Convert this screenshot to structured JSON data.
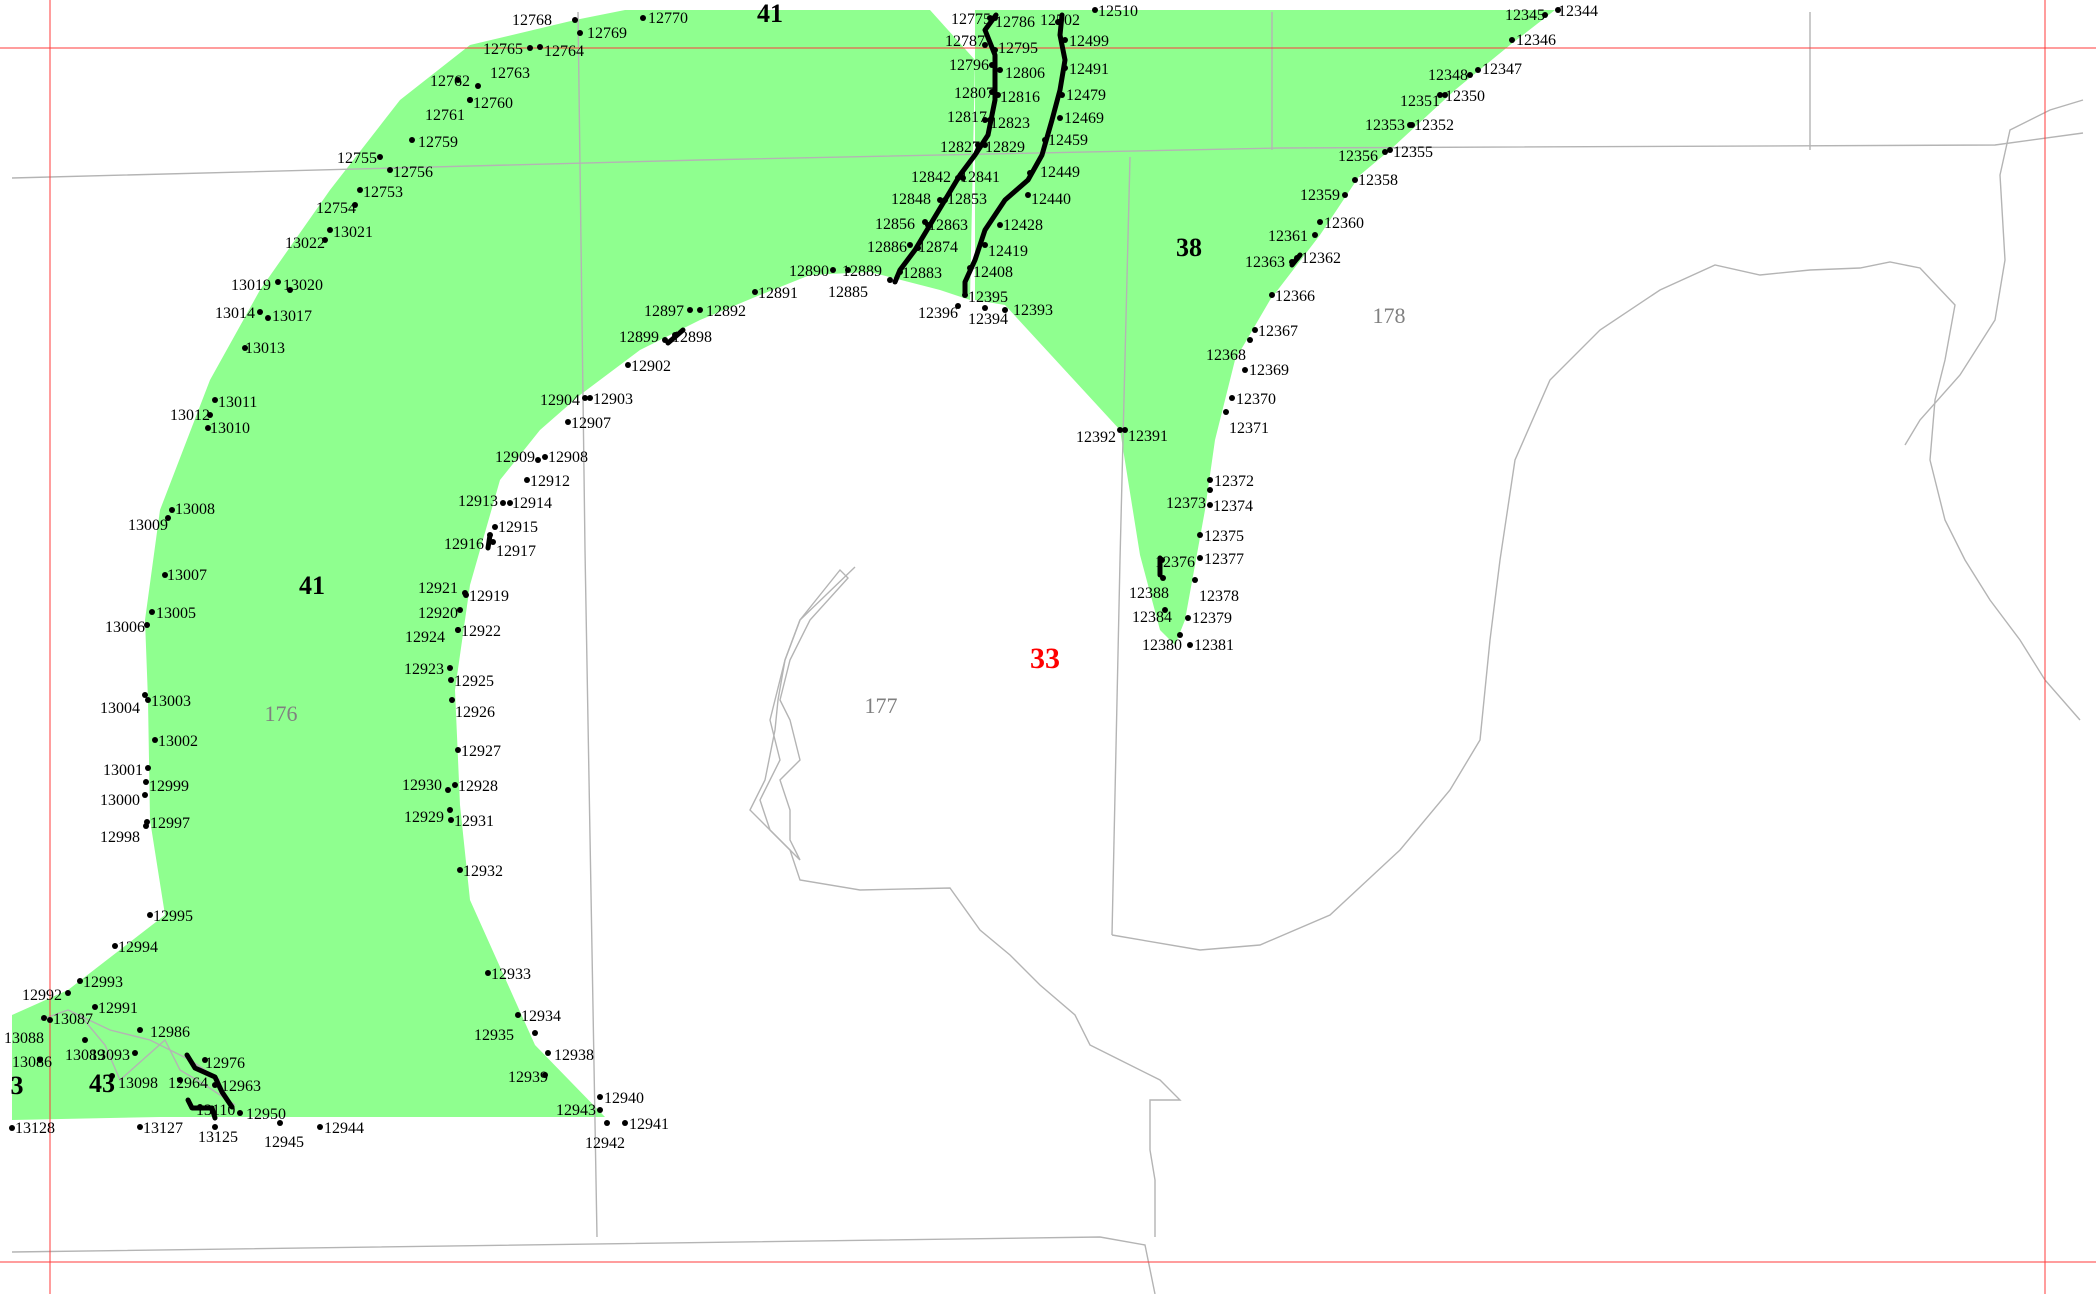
{
  "colors": {
    "zone_fill": "#8fff8f",
    "grid": "#ff3b3b",
    "parcel_boundary": "#b4b4b4",
    "parcel_label": "#808080",
    "center_label": "#ff0000",
    "point": "#000000"
  },
  "labels": {
    "zone_41_top": "41",
    "zone_41": "41",
    "zone_38": "38",
    "zone_43": "43",
    "zone_3": "3",
    "center": "33",
    "parcel_176": "176",
    "parcel_177": "177",
    "parcel_178": "178"
  },
  "points": [
    "12768",
    "12770",
    "12769",
    "12765",
    "12764",
    "12762",
    "12763",
    "12761",
    "12760",
    "12759",
    "12755",
    "12756",
    "12753",
    "12754",
    "13021",
    "13022",
    "13019",
    "13020",
    "13014",
    "13017",
    "13013",
    "13012",
    "13011",
    "13010",
    "13008",
    "13009",
    "13007",
    "13005",
    "13006",
    "13004",
    "13003",
    "13002",
    "13001",
    "12999",
    "13000",
    "12997",
    "12998",
    "12995",
    "12994",
    "12993",
    "12992",
    "12991",
    "13087",
    "13088",
    "12986",
    "13093",
    "13089",
    "13086",
    "13098",
    "12976",
    "12964",
    "12963",
    "13110",
    "12950",
    "13128",
    "13127",
    "13125",
    "12945",
    "12944",
    "12943",
    "12940",
    "12941",
    "12942",
    "12938",
    "12939",
    "12935",
    "12934",
    "12933",
    "12932",
    "12931",
    "12929",
    "12928",
    "12930",
    "12927",
    "12926",
    "12925",
    "12923",
    "12924",
    "12922",
    "12920",
    "12921",
    "12919",
    "12916",
    "12917",
    "12915",
    "12913",
    "12914",
    "12912",
    "12909",
    "12908",
    "12907",
    "12904",
    "12903",
    "12902",
    "12899",
    "12898",
    "12897",
    "12892",
    "12891",
    "12890",
    "12889",
    "12885",
    "12883",
    "12886",
    "12874",
    "12856",
    "12863",
    "12848",
    "12853",
    "12842",
    "12841",
    "12827",
    "12829",
    "12817",
    "12823",
    "12807",
    "12816",
    "12796",
    "12806",
    "12787",
    "12795",
    "12775",
    "12786",
    "12502",
    "12510",
    "12499",
    "12491",
    "12479",
    "12469",
    "12459",
    "12449",
    "12440",
    "12428",
    "12419",
    "12408",
    "12395",
    "12396",
    "12394",
    "12393",
    "12392",
    "12391",
    "12345",
    "12344",
    "12346",
    "12348",
    "12347",
    "12351",
    "12350",
    "12353",
    "12352",
    "12356",
    "12355",
    "12358",
    "12359",
    "12361",
    "12360",
    "12363",
    "12362",
    "12366",
    "12367",
    "12368",
    "12369",
    "12370",
    "12371",
    "12372",
    "12373",
    "12374",
    "12375",
    "12376",
    "12377",
    "12388",
    "12378",
    "12384",
    "12379",
    "12380",
    "12381"
  ]
}
